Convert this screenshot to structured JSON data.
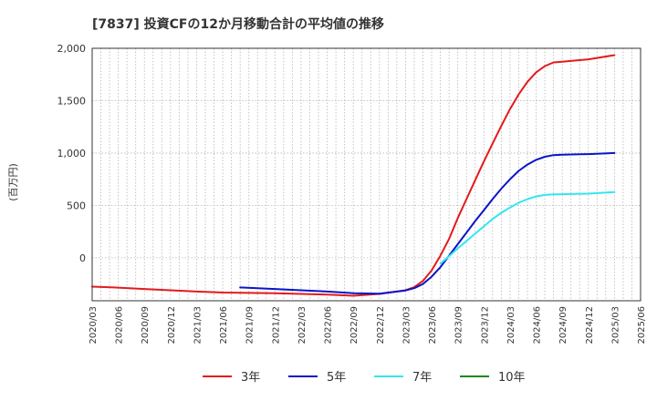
{
  "chart_data": {
    "type": "line",
    "title": "[7837]  投資CFの12か月移動合計の平均値の推移",
    "ylabel": "(百万円)",
    "xlabel": "",
    "ylim": [
      -410,
      2000
    ],
    "yticks": [
      0,
      500,
      1000,
      1500,
      2000
    ],
    "ytick_labels": [
      "0",
      "500",
      "1,000",
      "1,500",
      "2,000"
    ],
    "x_categories": [
      "2020/03",
      "2020/06",
      "2020/09",
      "2020/12",
      "2021/03",
      "2021/06",
      "2021/09",
      "2021/12",
      "2022/03",
      "2022/06",
      "2022/09",
      "2022/12",
      "2023/03",
      "2023/06",
      "2023/09",
      "2023/12",
      "2024/03",
      "2024/06",
      "2024/09",
      "2024/12",
      "2025/03",
      "2025/06"
    ],
    "grid": true,
    "legend_position": "bottom",
    "series": [
      {
        "name": "3年",
        "color": "#e31a1c",
        "points": [
          [
            "2020/03",
            -275
          ],
          [
            "2020/06",
            -285
          ],
          [
            "2020/09",
            -298
          ],
          [
            "2020/12",
            -310
          ],
          [
            "2021/03",
            -322
          ],
          [
            "2021/06",
            -332
          ],
          [
            "2021/09",
            -335
          ],
          [
            "2021/12",
            -338
          ],
          [
            "2022/03",
            -345
          ],
          [
            "2022/06",
            -352
          ],
          [
            "2022/09",
            -362
          ],
          [
            "2022/12",
            -345
          ],
          [
            "2023/03",
            -310
          ],
          [
            "2023/04",
            -280
          ],
          [
            "2023/05",
            -220
          ],
          [
            "2023/06",
            -120
          ],
          [
            "2023/07",
            20
          ],
          [
            "2023/08",
            180
          ],
          [
            "2023/09",
            380
          ],
          [
            "2023/10",
            560
          ],
          [
            "2023/11",
            740
          ],
          [
            "2023/12",
            920
          ],
          [
            "2024/01",
            1090
          ],
          [
            "2024/02",
            1260
          ],
          [
            "2024/03",
            1420
          ],
          [
            "2024/04",
            1560
          ],
          [
            "2024/05",
            1680
          ],
          [
            "2024/06",
            1770
          ],
          [
            "2024/07",
            1830
          ],
          [
            "2024/08",
            1865
          ],
          [
            "2024/09",
            1872
          ],
          [
            "2024/12",
            1895
          ],
          [
            "2025/03",
            1935
          ]
        ]
      },
      {
        "name": "5年",
        "color": "#0a14c8",
        "points": [
          [
            "2021/08",
            -283
          ],
          [
            "2021/12",
            -298
          ],
          [
            "2022/03",
            -310
          ],
          [
            "2022/06",
            -322
          ],
          [
            "2022/09",
            -338
          ],
          [
            "2022/12",
            -342
          ],
          [
            "2023/03",
            -312
          ],
          [
            "2023/04",
            -290
          ],
          [
            "2023/05",
            -250
          ],
          [
            "2023/06",
            -180
          ],
          [
            "2023/07",
            -90
          ],
          [
            "2023/08",
            20
          ],
          [
            "2023/09",
            130
          ],
          [
            "2023/10",
            240
          ],
          [
            "2023/11",
            350
          ],
          [
            "2023/12",
            455
          ],
          [
            "2024/01",
            560
          ],
          [
            "2024/02",
            660
          ],
          [
            "2024/03",
            750
          ],
          [
            "2024/04",
            830
          ],
          [
            "2024/05",
            890
          ],
          [
            "2024/06",
            935
          ],
          [
            "2024/07",
            965
          ],
          [
            "2024/08",
            980
          ],
          [
            "2024/09",
            985
          ],
          [
            "2024/12",
            990
          ],
          [
            "2025/03",
            1000
          ]
        ]
      },
      {
        "name": "7年",
        "color": "#33e6f0",
        "points": [
          [
            "2023/07",
            -55
          ],
          [
            "2023/08",
            15
          ],
          [
            "2023/09",
            90
          ],
          [
            "2023/10",
            160
          ],
          [
            "2023/11",
            230
          ],
          [
            "2023/12",
            300
          ],
          [
            "2024/01",
            370
          ],
          [
            "2024/02",
            430
          ],
          [
            "2024/03",
            480
          ],
          [
            "2024/04",
            525
          ],
          [
            "2024/05",
            560
          ],
          [
            "2024/06",
            585
          ],
          [
            "2024/07",
            600
          ],
          [
            "2024/08",
            605
          ],
          [
            "2024/09",
            607
          ],
          [
            "2024/12",
            612
          ],
          [
            "2025/03",
            628
          ]
        ]
      },
      {
        "name": "10年",
        "color": "#1a8a1a",
        "points": []
      }
    ]
  }
}
